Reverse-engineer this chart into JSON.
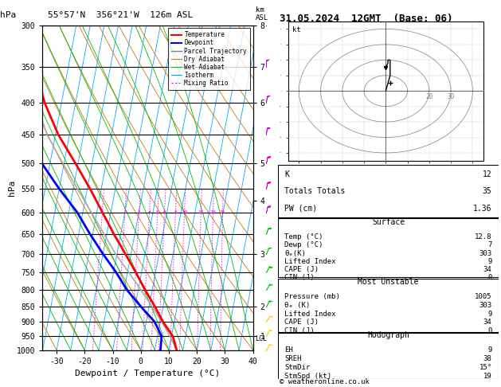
{
  "title_left": "55°57'N  356°21'W  126m ASL",
  "title_right": "31.05.2024  12GMT  (Base: 06)",
  "xlabel": "Dewpoint / Temperature (°C)",
  "ylabel_left": "hPa",
  "pressure_levels": [
    300,
    350,
    400,
    450,
    500,
    550,
    600,
    650,
    700,
    750,
    800,
    850,
    900,
    950,
    1000
  ],
  "xlim": [
    -35,
    40
  ],
  "skew": 22,
  "km_ticks": {
    "1": 950,
    "2": 850,
    "3": 700,
    "4": 575,
    "5": 500,
    "6": 400,
    "7": 350,
    "8": 300
  },
  "lcl_pressure": 960,
  "mixing_ratio_values": [
    1,
    2,
    3,
    4,
    5,
    6,
    8,
    10,
    15,
    20,
    25
  ],
  "temp_profile": {
    "temps": [
      12.8,
      10.5,
      6.0,
      2.0,
      -2.5,
      -7.0,
      -12.0,
      -17.5,
      -23.0,
      -29.0,
      -36.0,
      -44.0,
      -51.0,
      -57.0,
      -62.0
    ],
    "pressures": [
      1000,
      950,
      900,
      850,
      800,
      750,
      700,
      650,
      600,
      550,
      500,
      450,
      400,
      350,
      300
    ]
  },
  "dewpoint_profile": {
    "temps": [
      7.0,
      6.5,
      3.0,
      -3.0,
      -9.0,
      -14.0,
      -20.0,
      -26.0,
      -32.0,
      -40.0,
      -48.0,
      -54.0,
      -60.0,
      -62.0,
      -66.0
    ],
    "pressures": [
      1000,
      950,
      900,
      850,
      800,
      750,
      700,
      650,
      600,
      550,
      500,
      450,
      400,
      350,
      300
    ]
  },
  "parcel_profile": {
    "temps": [
      12.8,
      9.5,
      5.5,
      1.0,
      -4.0,
      -9.5,
      -15.5,
      -21.0,
      -27.0,
      -33.5,
      -40.5,
      -48.0,
      -54.0,
      -59.5,
      -64.5
    ],
    "pressures": [
      1000,
      950,
      900,
      850,
      800,
      750,
      700,
      650,
      600,
      550,
      500,
      450,
      400,
      350,
      300
    ]
  },
  "temp_color": "#ff0000",
  "dewp_color": "#0000ff",
  "parcel_color": "#aaaaaa",
  "isotherm_color": "#00aaff",
  "dry_adiabat_color": "#cc7700",
  "wet_adiabat_color": "#00bb00",
  "mixing_color": "#ff00ff",
  "info_box": {
    "K": 12,
    "Totals_Totals": 35,
    "PW_cm": 1.36,
    "Surf_Temp": 12.8,
    "Surf_Dewp": 7,
    "Surf_ThetaE": 303,
    "Surf_LI": 9,
    "Surf_CAPE": 34,
    "Surf_CIN": 0,
    "MU_Pressure": 1005,
    "MU_ThetaE": 303,
    "MU_LI": 9,
    "MU_CAPE": 34,
    "MU_CIN": 0,
    "Hodo_EH": 9,
    "Hodo_SREH": 38,
    "Hodo_StmDir": "15°",
    "Hodo_StmSpd": 19
  },
  "wind_barbs": [
    {
      "p": 1000,
      "u": -2,
      "v": -4,
      "color": "#ffcc00"
    },
    {
      "p": 950,
      "u": -2,
      "v": -4,
      "color": "#ffcc00"
    },
    {
      "p": 900,
      "u": -3,
      "v": -5,
      "color": "#ffcc00"
    },
    {
      "p": 850,
      "u": -3,
      "v": -6,
      "color": "#00cc00"
    },
    {
      "p": 800,
      "u": -4,
      "v": -7,
      "color": "#00cc00"
    },
    {
      "p": 750,
      "u": -4,
      "v": -8,
      "color": "#00cc00"
    },
    {
      "p": 700,
      "u": -3,
      "v": -8,
      "color": "#00cc00"
    },
    {
      "p": 650,
      "u": -3,
      "v": -9,
      "color": "#00cc00"
    },
    {
      "p": 600,
      "u": -2,
      "v": -9,
      "color": "#cc00cc"
    },
    {
      "p": 550,
      "u": -2,
      "v": -10,
      "color": "#cc00cc"
    },
    {
      "p": 500,
      "u": -2,
      "v": -10,
      "color": "#cc00cc"
    },
    {
      "p": 450,
      "u": -1,
      "v": -9,
      "color": "#cc00cc"
    },
    {
      "p": 400,
      "u": -1,
      "v": -8,
      "color": "#cc00cc"
    },
    {
      "p": 350,
      "u": 0,
      "v": -8,
      "color": "#cc00cc"
    },
    {
      "p": 300,
      "u": 0,
      "v": -7,
      "color": "#cc00cc"
    }
  ]
}
